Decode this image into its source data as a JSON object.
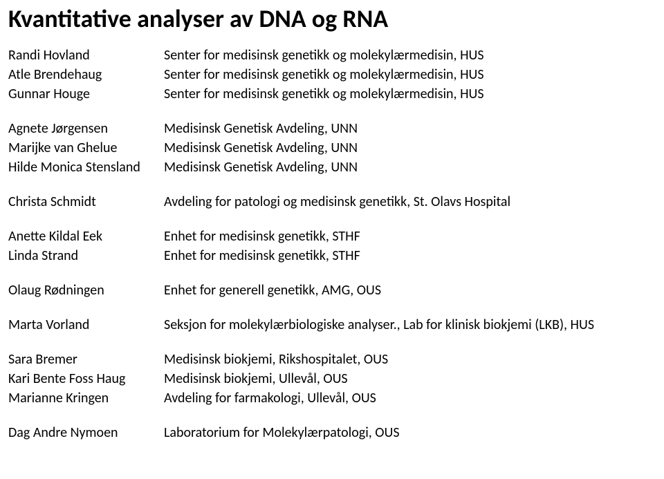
{
  "title": "Kvantitative analyser av DNA og RNA",
  "groups": [
    [
      {
        "name": "Randi Hovland",
        "affil": "Senter for medisinsk genetikk og molekylærmedisin, HUS"
      },
      {
        "name": "Atle Brendehaug",
        "affil": "Senter for medisinsk genetikk og molekylærmedisin, HUS"
      },
      {
        "name": "Gunnar Houge",
        "affil": "Senter for medisinsk genetikk og molekylærmedisin, HUS"
      }
    ],
    [
      {
        "name": "Agnete Jørgensen",
        "affil": "Medisinsk Genetisk Avdeling, UNN"
      },
      {
        "name": "Marijke van Ghelue",
        "affil": "Medisinsk Genetisk Avdeling, UNN"
      },
      {
        "name": "Hilde Monica Stensland",
        "affil": "Medisinsk Genetisk Avdeling, UNN"
      }
    ],
    [
      {
        "name": "Christa Schmidt",
        "affil": "Avdeling for patologi og medisinsk genetikk, St. Olavs Hospital"
      }
    ],
    [
      {
        "name": "Anette Kildal Eek",
        "affil": "Enhet for medisinsk genetikk, STHF"
      },
      {
        "name": "Linda Strand",
        "affil": "Enhet for medisinsk genetikk, STHF"
      }
    ],
    [
      {
        "name": "Olaug Rødningen",
        "affil": "Enhet for generell genetikk, AMG, OUS"
      }
    ],
    [
      {
        "name": "Marta Vorland",
        "affil": "Seksjon for molekylærbiologiske analyser., Lab for klinisk biokjemi (LKB), HUS"
      }
    ],
    [
      {
        "name": "Sara Bremer",
        "affil": "Medisinsk biokjemi,  Rikshospitalet, OUS"
      },
      {
        "name": "Kari Bente Foss Haug",
        "affil": "Medisinsk biokjemi,  Ullevål, OUS"
      },
      {
        "name": "Marianne Kringen",
        "affil": "Avdeling for farmakologi,  Ullevål, OUS"
      }
    ],
    [
      {
        "name": "Dag Andre Nymoen",
        "affil": "Laboratorium for Molekylærpatologi, OUS"
      }
    ]
  ]
}
